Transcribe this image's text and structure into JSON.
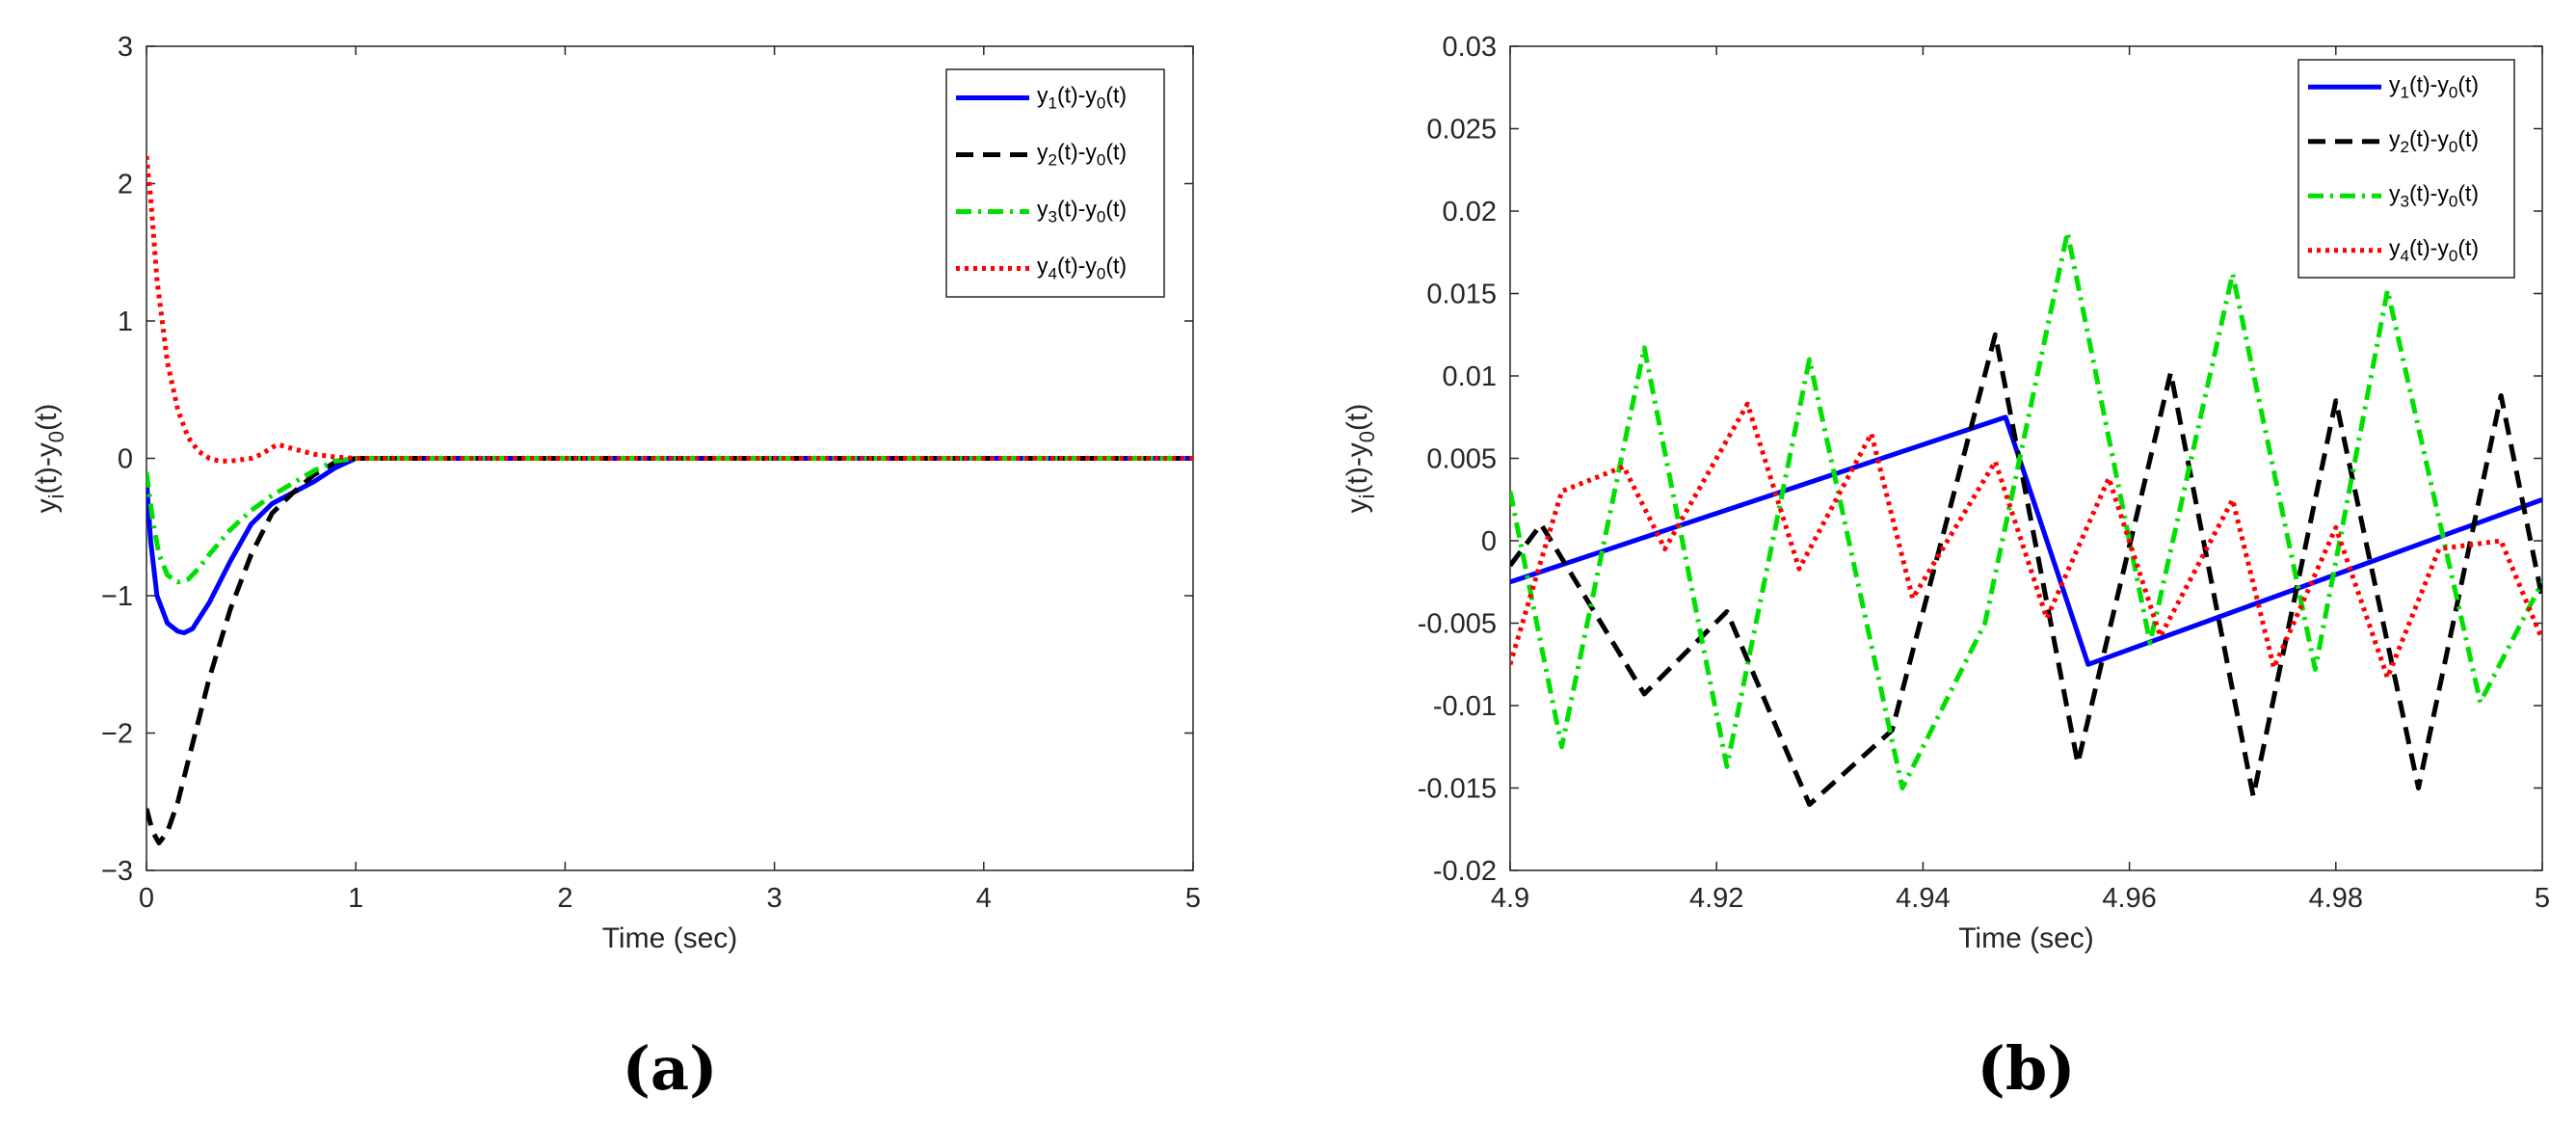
{
  "chart_data": [
    {
      "type": "line",
      "panel_label": "(a)",
      "xlabel": "Time (sec)",
      "ylabel": "y_i(t)-y_0(t)",
      "xlim": [
        0,
        5
      ],
      "ylim": [
        -3,
        3
      ],
      "xticks": [
        "0",
        "1",
        "2",
        "3",
        "4",
        "5"
      ],
      "yticks": [
        "3",
        "2",
        "1",
        "0",
        "−1",
        "−2",
        "−3"
      ],
      "legend_position": "top-right",
      "series": [
        {
          "name": "y_1(t)-y_0(t)",
          "color": "#0000FF",
          "dash": "solid",
          "x": [
            0,
            0.02,
            0.05,
            0.1,
            0.15,
            0.18,
            0.22,
            0.3,
            0.4,
            0.5,
            0.6,
            0.7,
            0.8,
            0.9,
            1.0,
            1.2,
            1.5,
            2,
            2.5,
            3,
            3.5,
            4,
            4.5,
            5
          ],
          "y": [
            -0.15,
            -0.6,
            -1.0,
            -1.2,
            -1.26,
            -1.27,
            -1.24,
            -1.05,
            -0.75,
            -0.48,
            -0.33,
            -0.25,
            -0.17,
            -0.07,
            0.0,
            0.0,
            0.0,
            0.0,
            0.0,
            0.0,
            0.0,
            0.0,
            0.0,
            0.0
          ]
        },
        {
          "name": "y_2(t)-y_0(t)",
          "color": "#000000",
          "dash": "dashed",
          "x": [
            0,
            0.03,
            0.06,
            0.1,
            0.15,
            0.2,
            0.3,
            0.4,
            0.5,
            0.6,
            0.7,
            0.8,
            0.9,
            1.0,
            1.5,
            2,
            2.5,
            3,
            3.5,
            4,
            4.5,
            5
          ],
          "y": [
            -2.55,
            -2.72,
            -2.8,
            -2.72,
            -2.5,
            -2.2,
            -1.6,
            -1.1,
            -0.7,
            -0.4,
            -0.25,
            -0.12,
            -0.03,
            0.0,
            0.0,
            0.0,
            0.0,
            0.0,
            0.0,
            0.0,
            0.0,
            0.0
          ]
        },
        {
          "name": "y_3(t)-y_0(t)",
          "color": "#00E000",
          "dash": "dashdot",
          "x": [
            0,
            0.03,
            0.06,
            0.1,
            0.15,
            0.2,
            0.25,
            0.3,
            0.4,
            0.5,
            0.6,
            0.7,
            0.8,
            0.9,
            1.0,
            1.5,
            2,
            2.5,
            3,
            3.5,
            4,
            4.5,
            5
          ],
          "y": [
            -0.1,
            -0.45,
            -0.7,
            -0.85,
            -0.9,
            -0.88,
            -0.8,
            -0.7,
            -0.52,
            -0.38,
            -0.27,
            -0.18,
            -0.09,
            -0.02,
            0.0,
            0.0,
            0.0,
            0.0,
            0.0,
            0.0,
            0.0,
            0.0,
            0.0
          ]
        },
        {
          "name": "y_4(t)-y_0(t)",
          "color": "#FF0000",
          "dash": "dotted",
          "x": [
            0,
            0.02,
            0.05,
            0.1,
            0.15,
            0.2,
            0.25,
            0.3,
            0.35,
            0.4,
            0.5,
            0.55,
            0.6,
            0.63,
            0.7,
            0.8,
            0.9,
            1.0,
            1.5,
            2,
            2.5,
            3,
            3.5,
            4,
            4.5,
            5
          ],
          "y": [
            2.2,
            1.9,
            1.3,
            0.7,
            0.35,
            0.15,
            0.05,
            0.0,
            -0.02,
            -0.02,
            0.0,
            0.03,
            0.08,
            0.1,
            0.07,
            0.03,
            0.01,
            0.0,
            0.0,
            0.0,
            0.0,
            0.0,
            0.0,
            0.0,
            0.0,
            0.0
          ]
        }
      ]
    },
    {
      "type": "line",
      "panel_label": "(b)",
      "xlabel": "Time (sec)",
      "ylabel": "y_i(t)-y_0(t)",
      "xlim": [
        4.9,
        5.0
      ],
      "ylim": [
        -0.02,
        0.03
      ],
      "xticks": [
        "4.9",
        "4.92",
        "4.94",
        "4.96",
        "4.98",
        "5"
      ],
      "yticks": [
        "0.03",
        "0.025",
        "0.02",
        "0.015",
        "0.01",
        "0.005",
        "0",
        "-0.005",
        "-0.01",
        "-0.015",
        "-0.02"
      ],
      "legend_position": "top-right",
      "series": [
        {
          "name": "y_1(t)-y_0(t)",
          "color": "#0000FF",
          "dash": "solid",
          "x": [
            4.9,
            4.948,
            4.956,
            5.0
          ],
          "y": [
            -0.0025,
            0.0075,
            -0.0075,
            0.0025
          ]
        },
        {
          "name": "y_2(t)-y_0(t)",
          "color": "#000000",
          "dash": "dashed",
          "x": [
            4.9,
            4.903,
            4.913,
            4.921,
            4.929,
            4.937,
            4.947,
            4.955,
            4.964,
            4.972,
            4.98,
            4.988,
            4.996,
            5.0
          ],
          "y": [
            -0.0015,
            0.001,
            -0.0093,
            -0.0043,
            -0.016,
            -0.0115,
            0.0125,
            -0.0135,
            0.0102,
            -0.0155,
            0.0085,
            -0.015,
            0.0088,
            -0.0035
          ]
        },
        {
          "name": "y_3(t)-y_0(t)",
          "color": "#00E000",
          "dash": "dashdot",
          "x": [
            4.9,
            4.905,
            4.913,
            4.921,
            4.929,
            4.938,
            4.946,
            4.954,
            4.962,
            4.97,
            4.978,
            4.985,
            4.994,
            5.0
          ],
          "y": [
            0.003,
            -0.0125,
            0.0117,
            -0.0137,
            0.011,
            -0.015,
            -0.005,
            0.0187,
            -0.0062,
            0.0162,
            -0.0078,
            0.0152,
            -0.0098,
            -0.0025
          ]
        },
        {
          "name": "y_4(t)-y_0(t)",
          "color": "#FF0000",
          "dash": "dotted",
          "x": [
            4.9,
            4.905,
            4.911,
            4.915,
            4.923,
            4.928,
            4.935,
            4.939,
            4.947,
            4.952,
            4.958,
            4.963,
            4.97,
            4.974,
            4.98,
            4.985,
            4.99,
            4.996,
            5.0
          ],
          "y": [
            -0.0075,
            0.003,
            0.0045,
            -0.0005,
            0.0083,
            -0.0017,
            0.0065,
            -0.0035,
            0.0048,
            -0.0047,
            0.0038,
            -0.0058,
            0.0025,
            -0.0077,
            0.0008,
            -0.0083,
            -0.0005,
            0.0,
            -0.006
          ]
        }
      ]
    }
  ]
}
